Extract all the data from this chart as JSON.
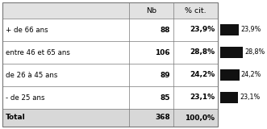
{
  "rows": [
    {
      "label": "- de 25 ans",
      "nb": 85,
      "pct": 23.1,
      "pct_str": "23,1%"
    },
    {
      "label": "de 26 à 45 ans",
      "nb": 89,
      "pct": 24.2,
      "pct_str": "24,2%"
    },
    {
      "label": "entre 46 et 65 ans",
      "nb": 106,
      "pct": 28.8,
      "pct_str": "28,8%"
    },
    {
      "label": "+ de 66 ans",
      "nb": 88,
      "pct": 23.9,
      "pct_str": "23,9%"
    }
  ],
  "total_nb": "368",
  "total_pct_str": "100,0%",
  "col_nb": "Nb",
  "col_pct": "% cit.",
  "bar_color": "#111111",
  "max_pct": 28.8,
  "figw": 3.31,
  "figh": 1.6,
  "dpi": 100
}
